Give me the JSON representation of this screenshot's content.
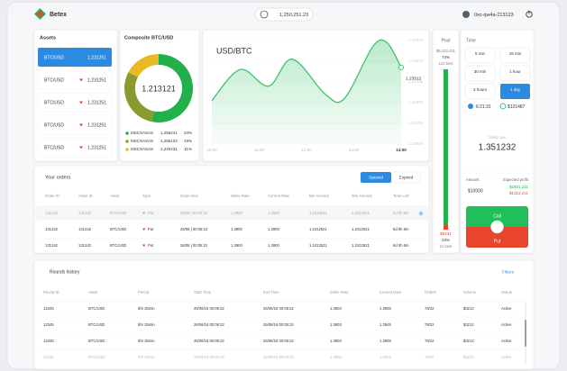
{
  "header": {
    "brand": "Betex",
    "balance": "1,250,251.23",
    "user": "0xc-qw4a-213123"
  },
  "assets": {
    "title": "Assets",
    "selected": 0,
    "rows": [
      {
        "pair": "BTC/USD",
        "rate": "1.231251"
      },
      {
        "pair": "BTC/USD",
        "rate": "1.231251"
      },
      {
        "pair": "BTC/USD",
        "rate": "1.231251"
      },
      {
        "pair": "BTC/USD",
        "rate": "1.231251"
      },
      {
        "pair": "BTC/USD",
        "rate": "1.231251"
      }
    ]
  },
  "composite": {
    "title": "Composite BTC/USD",
    "center": "1.213121",
    "names": [
      "MSCSASAS",
      "MSCSASAS",
      "MSCSASAS"
    ],
    "amounts": [
      "1,256241",
      "1,256124",
      "1,240231"
    ],
    "values": [
      34,
      19,
      11
    ],
    "value_labels": [
      "34%",
      "19%",
      "11%"
    ],
    "colors": [
      "#22b04b",
      "#8a9a2e",
      "#e8b923"
    ]
  },
  "price_chart": {
    "type": "line",
    "title": "USD/BTC",
    "color": "#3cc46a",
    "x": [
      10,
      10.6,
      11.2,
      11.7,
      12.4,
      12.8,
      13.4,
      13.7,
      14
    ],
    "values": [
      1.221,
      1.236,
      1.228,
      1.241,
      1.224,
      1.222,
      1.247,
      1.249,
      1.237
    ],
    "xlim": [
      10,
      14
    ],
    "ylim": [
      1.2,
      1.25
    ],
    "xticks": [
      {
        "value": 10,
        "label": "10:00"
      },
      {
        "value": 11,
        "label": "11:00"
      },
      {
        "value": 12,
        "label": "12:00"
      },
      {
        "value": 13,
        "label": "13:00"
      },
      {
        "value": 14,
        "label": "14:00"
      }
    ],
    "yticks": [
      {
        "value": 1.2,
        "label": "1.20000"
      },
      {
        "value": 1.21,
        "label": "1.21000"
      },
      {
        "value": 1.22,
        "label": "1.22000"
      },
      {
        "value": 1.23,
        "label": "1.23000"
      },
      {
        "value": 1.24,
        "label": "1.24000"
      },
      {
        "value": 1.25,
        "label": "1.25000"
      }
    ],
    "current_label": "1.23512"
  },
  "pool": {
    "title": "Pool",
    "up": {
      "amount": "$5,123,431",
      "share": "74%",
      "bets": "123 bets"
    },
    "down": {
      "amount": "$5231",
      "share": "24%",
      "bets": "21 bets"
    }
  },
  "time": {
    "title": "Time",
    "options": [
      "5 min",
      "15 min",
      "30 min",
      "1 hour",
      "3 hours",
      "1 day"
    ],
    "selected": 5,
    "countdown": "6:21:31",
    "prize": "$121487"
  },
  "strike": {
    "label": "Strike rate",
    "value": "1.351232"
  },
  "trade": {
    "amount_label": "Amount",
    "amount": "$10000",
    "profit_label": "Expected profit",
    "profit_up": "$2401.211",
    "profit_down": "$1312.211",
    "call": "Call",
    "put": "Put"
  },
  "orders": {
    "title": "Your orders",
    "tabs": [
      "Opened",
      "Expired"
    ],
    "columns": [
      "Order ID",
      "Asset ID",
      "Asset",
      "Type",
      "Order time",
      "Strike Rate",
      "Current Rate",
      "Bet Amount",
      "Win Amount",
      "Time Left"
    ],
    "rows": [
      [
        "131242",
        "131242",
        "BTC/USD",
        "Put",
        "26/06 | 00:05:22",
        "1.3900",
        "1.3900",
        "1.2412521",
        "1.2412521",
        "6d 0h 6m"
      ],
      [
        "131242",
        "131242",
        "BTC/USD",
        "Put",
        "26/06 | 00:05:22",
        "1.3900",
        "1.3900",
        "1.2412521",
        "1.2412521",
        "6d 0h 6m"
      ],
      [
        "131242",
        "131242",
        "BTC/USD",
        "Put",
        "26/06 | 00:05:22",
        "1.3900",
        "1.3900",
        "1.2412521",
        "1.2412521",
        "6d 0h 6m"
      ]
    ]
  },
  "rounds": {
    "title": "Rounds history",
    "filters": "Filters",
    "columns": [
      "Round ID",
      "Asset",
      "Period",
      "Start Time",
      "End Time",
      "Strike Rate",
      "Current Rate",
      "Orders",
      "Volume",
      "Status"
    ],
    "rows": [
      [
        "12345",
        "BTC/USD",
        "5hr 25min",
        "26/06/16 00:05:22",
        "26/06/16 00:05:22",
        "1.3903",
        "1.3945",
        "78/22",
        "$3212",
        "Active"
      ],
      [
        "12345",
        "BTC/USD",
        "5hr 25min",
        "26/06/16 00:05:22",
        "26/06/16 00:05:22",
        "1.3903",
        "1.3945",
        "78/22",
        "$3212",
        "Active"
      ],
      [
        "12345",
        "BTC/USD",
        "5hr 25min",
        "26/06/16 00:05:22",
        "26/06/16 00:05:22",
        "1.3903",
        "1.3945",
        "78/22",
        "$3212",
        "Active"
      ],
      [
        "12345",
        "BTC/USD",
        "5hr 25min",
        "26/06/16 00:05:22",
        "26/06/16 00:05:22",
        "1.3903",
        "1.3945",
        "78/22",
        "$3212",
        "Active"
      ]
    ]
  }
}
